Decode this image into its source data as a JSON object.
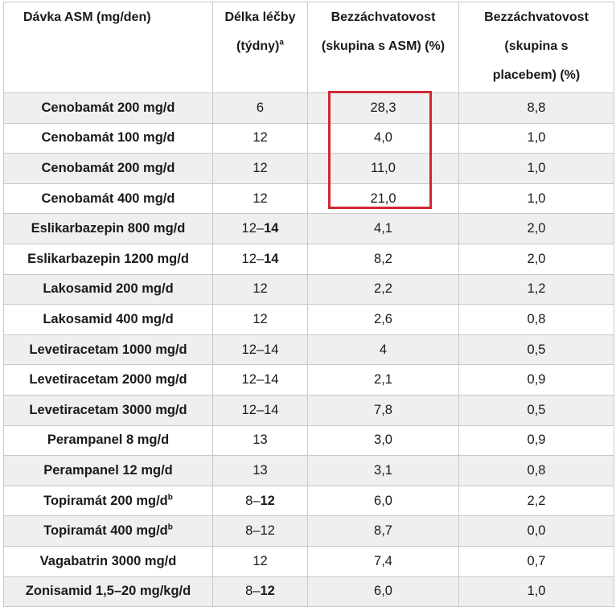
{
  "headers": {
    "dose": "Dávka ASM (mg/den)",
    "duration_l1": "Délka léčby",
    "duration_l2": "(týdny)",
    "duration_sup": "a",
    "asm_l1": "Bezzáchvatovost",
    "asm_l2": "(skupina s ASM) (%)",
    "placebo_l1": "Bezzáchvatovost",
    "placebo_l2": "(skupina s",
    "placebo_l3": "placebem) (%)"
  },
  "rows": [
    {
      "name": "Cenobamát 200 mg/d",
      "sup": "",
      "dur_a": "6",
      "dur_b": "",
      "dur_b_bold": false,
      "asm": "28,3",
      "placebo": "8,8"
    },
    {
      "name": "Cenobamát 100 mg/d",
      "sup": "",
      "dur_a": "12",
      "dur_b": "",
      "dur_b_bold": false,
      "asm": "4,0",
      "placebo": "1,0"
    },
    {
      "name": "Cenobamát 200 mg/d",
      "sup": "",
      "dur_a": "12",
      "dur_b": "",
      "dur_b_bold": false,
      "asm": "11,0",
      "placebo": "1,0"
    },
    {
      "name": "Cenobamát 400 mg/d",
      "sup": "",
      "dur_a": "12",
      "dur_b": "",
      "dur_b_bold": false,
      "asm": "21,0",
      "placebo": "1,0"
    },
    {
      "name": "Eslikarbazepin 800 mg/d",
      "sup": "",
      "dur_a": "12–",
      "dur_b": "14",
      "dur_b_bold": true,
      "asm": "4,1",
      "placebo": "2,0"
    },
    {
      "name": "Eslikarbazepin 1200 mg/d",
      "sup": "",
      "dur_a": "12–",
      "dur_b": "14",
      "dur_b_bold": true,
      "asm": "8,2",
      "placebo": "2,0"
    },
    {
      "name": "Lakosamid 200 mg/d",
      "sup": "",
      "dur_a": "12",
      "dur_b": "",
      "dur_b_bold": false,
      "asm": "2,2",
      "placebo": "1,2"
    },
    {
      "name": "Lakosamid 400 mg/d",
      "sup": "",
      "dur_a": "12",
      "dur_b": "",
      "dur_b_bold": false,
      "asm": "2,6",
      "placebo": "0,8"
    },
    {
      "name": "Levetiracetam 1000 mg/d",
      "sup": "",
      "dur_a": "12–14",
      "dur_b": "",
      "dur_b_bold": false,
      "asm": "4",
      "placebo": "0,5"
    },
    {
      "name": "Levetiracetam 2000 mg/d",
      "sup": "",
      "dur_a": "12–14",
      "dur_b": "",
      "dur_b_bold": false,
      "asm": "2,1",
      "placebo": "0,9"
    },
    {
      "name": "Levetiracetam 3000 mg/d",
      "sup": "",
      "dur_a": "12–14",
      "dur_b": "",
      "dur_b_bold": false,
      "asm": "7,8",
      "placebo": "0,5"
    },
    {
      "name": "Perampanel 8 mg/d",
      "sup": "",
      "dur_a": "13",
      "dur_b": "",
      "dur_b_bold": false,
      "asm": "3,0",
      "placebo": "0,9"
    },
    {
      "name": "Perampanel 12 mg/d",
      "sup": "",
      "dur_a": "13",
      "dur_b": "",
      "dur_b_bold": false,
      "asm": "3,1",
      "placebo": "0,8"
    },
    {
      "name": "Topiramát 200 mg/d",
      "sup": "b",
      "dur_a": "8–",
      "dur_b": "12",
      "dur_b_bold": true,
      "asm": "6,0",
      "placebo": "2,2"
    },
    {
      "name": "Topiramát 400 mg/d",
      "sup": "b",
      "dur_a": "8–12",
      "dur_b": "",
      "dur_b_bold": false,
      "asm": "8,7",
      "placebo": "0,0"
    },
    {
      "name": "Vagabatrin 3000 mg/d",
      "sup": "",
      "dur_a": "12",
      "dur_b": "",
      "dur_b_bold": false,
      "asm": "7,4",
      "placebo": "0,7"
    },
    {
      "name": "Zonisamid 1,5–20 mg/kg/d",
      "sup": "",
      "dur_a": "8–",
      "dur_b": "12",
      "dur_b_bold": true,
      "asm": "6,0",
      "placebo": "1,0"
    }
  ],
  "highlight_color": "#d02833"
}
